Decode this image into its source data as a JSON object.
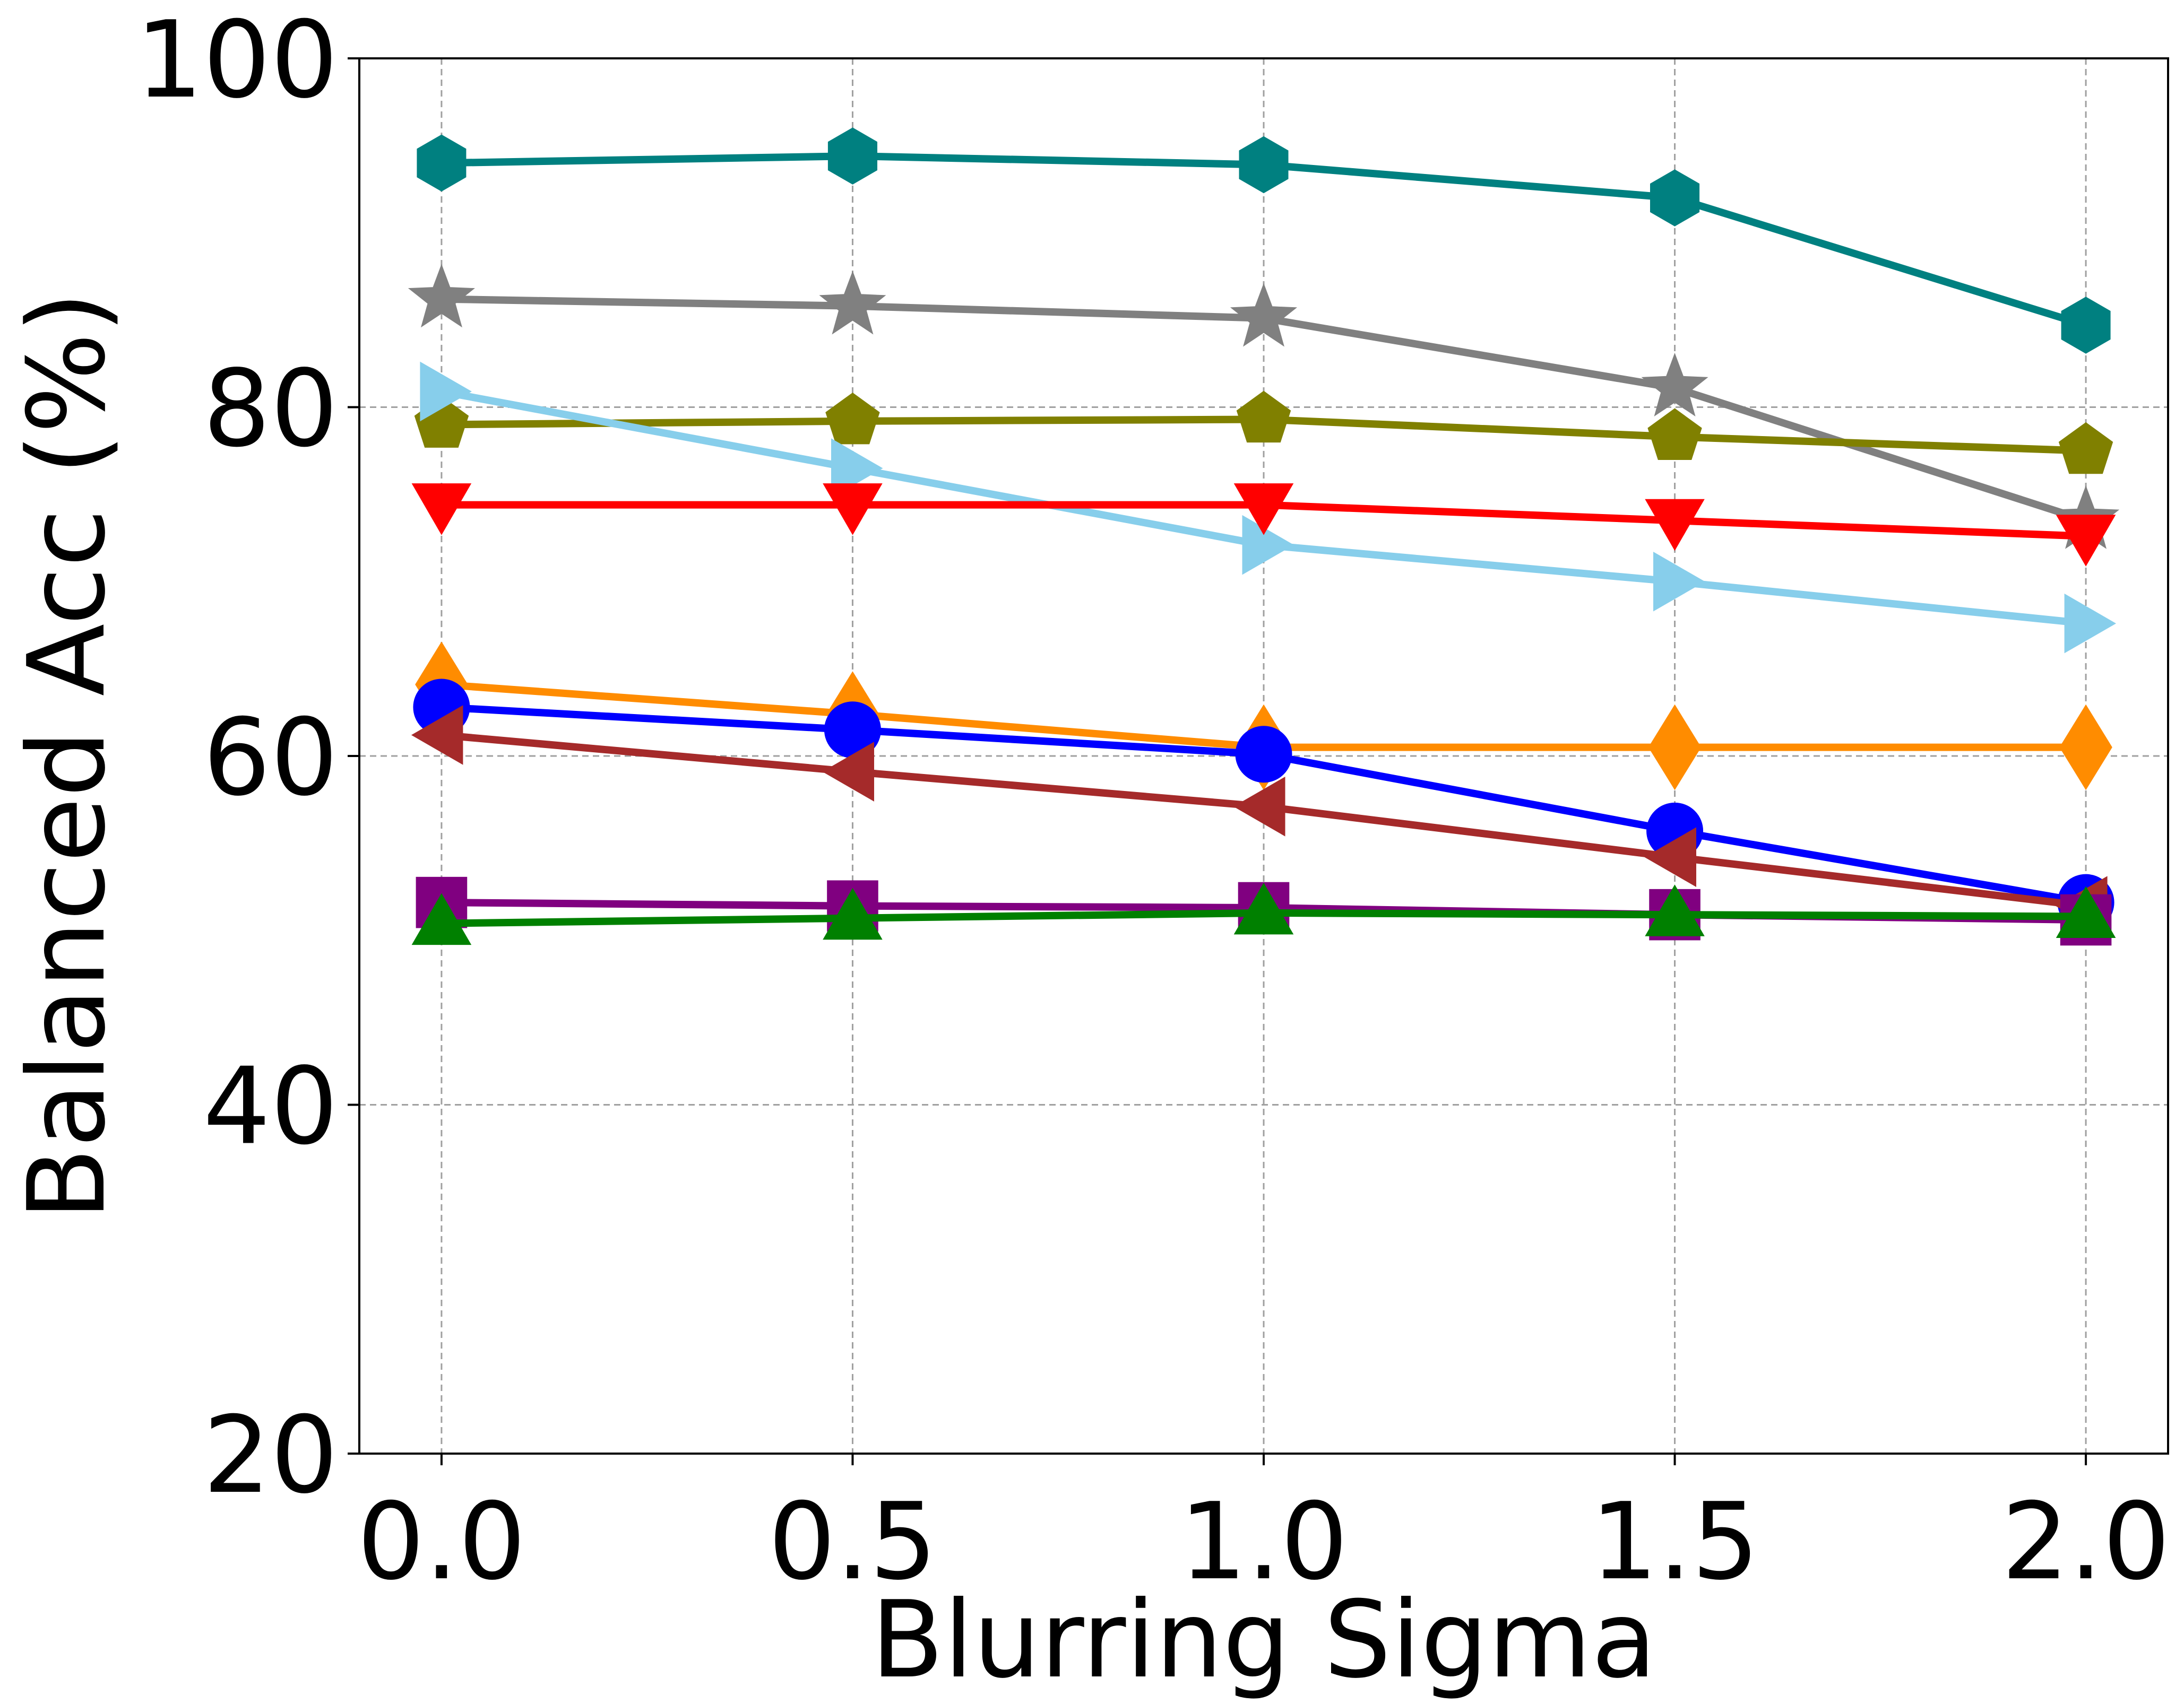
{
  "chart_data": {
    "type": "line",
    "title": "",
    "xlabel": "Blurring Sigma",
    "ylabel": "Balanced Acc (%)",
    "x": [
      0.0,
      0.5,
      1.0,
      1.5,
      2.0
    ],
    "x_tick_labels": [
      "0.0",
      "0.5",
      "1.0",
      "1.5",
      "2.0"
    ],
    "y_ticks": [
      20,
      40,
      60,
      80,
      100
    ],
    "y_tick_labels": [
      "20",
      "40",
      "60",
      "80",
      "100"
    ],
    "xlim": [
      -0.1,
      2.1
    ],
    "ylim": [
      20,
      100
    ],
    "grid": true,
    "legend": "none",
    "series": [
      {
        "name": "teal-hexagon",
        "color": "#008080",
        "marker": "hexagon",
        "values": [
          94.0,
          94.4,
          93.9,
          92.0,
          84.7
        ]
      },
      {
        "name": "gray-star",
        "color": "#808080",
        "marker": "star",
        "values": [
          86.2,
          85.8,
          85.1,
          81.1,
          73.5
        ]
      },
      {
        "name": "olive-pentagon",
        "color": "#808000",
        "marker": "pentagon",
        "values": [
          79.0,
          79.2,
          79.3,
          78.3,
          77.5
        ]
      },
      {
        "name": "skyblue-triangle-right",
        "color": "#87CEEB",
        "marker": "triangle-right",
        "values": [
          80.9,
          76.5,
          72.1,
          70.0,
          67.6
        ]
      },
      {
        "name": "red-triangle-down",
        "color": "#FF0000",
        "marker": "triangle-down",
        "values": [
          74.4,
          74.4,
          74.4,
          73.5,
          72.6
        ]
      },
      {
        "name": "orange-diamond",
        "color": "#FF8C00",
        "marker": "diamond",
        "values": [
          64.1,
          62.4,
          60.5,
          60.5,
          60.5
        ]
      },
      {
        "name": "blue-circle",
        "color": "#0000FF",
        "marker": "circle",
        "values": [
          62.8,
          61.5,
          60.1,
          55.7,
          51.6
        ]
      },
      {
        "name": "brown-triangle-left",
        "color": "#A52A2A",
        "marker": "triangle-left",
        "values": [
          61.2,
          59.1,
          57.1,
          54.2,
          51.4
        ]
      },
      {
        "name": "purple-square",
        "color": "#800080",
        "marker": "square",
        "values": [
          51.6,
          51.4,
          51.3,
          50.9,
          50.6
        ]
      },
      {
        "name": "green-triangle-up",
        "color": "#008000",
        "marker": "triangle-up",
        "values": [
          50.4,
          50.7,
          51.0,
          50.9,
          50.8
        ]
      }
    ]
  }
}
